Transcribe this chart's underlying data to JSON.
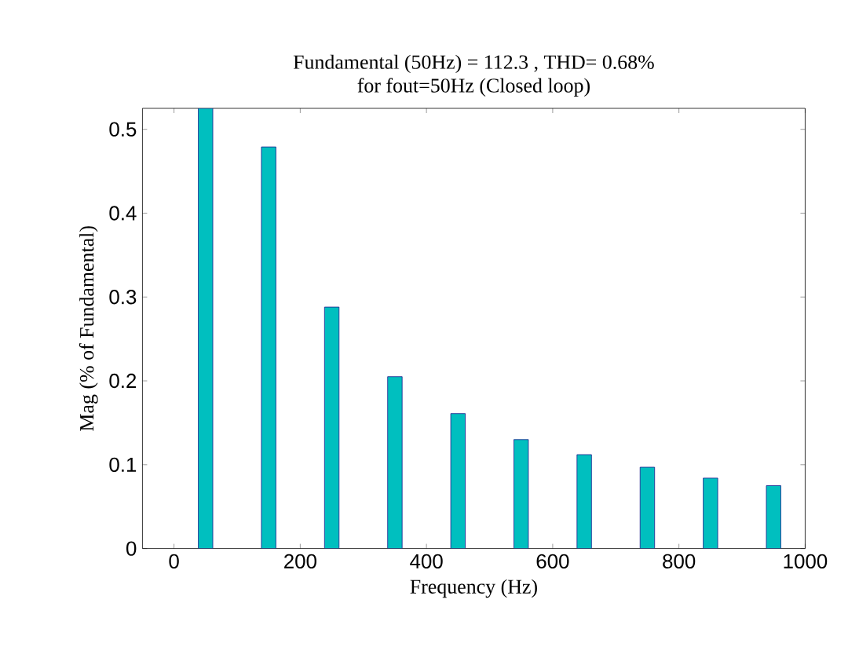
{
  "chart_data": {
    "type": "bar",
    "title": "Fundamental (50Hz) = 112.3 , THD= 0.68%",
    "subtitle": "for fout=50Hz (Closed loop)",
    "xlabel": "Frequency (Hz)",
    "ylabel": "Mag (% of Fundamental)",
    "x": [
      50,
      150,
      250,
      350,
      450,
      550,
      650,
      750,
      850,
      950
    ],
    "values": [
      0.525,
      0.479,
      0.288,
      0.205,
      0.161,
      0.13,
      0.112,
      0.097,
      0.084,
      0.075
    ],
    "color": "#00bfbf",
    "xlim": [
      -50,
      1000
    ],
    "xticks": [
      0,
      200,
      400,
      600,
      800,
      1000
    ],
    "ylim": [
      0,
      0.525
    ],
    "yticks": [
      0,
      0.1,
      0.2,
      0.3,
      0.4,
      0.5
    ]
  }
}
